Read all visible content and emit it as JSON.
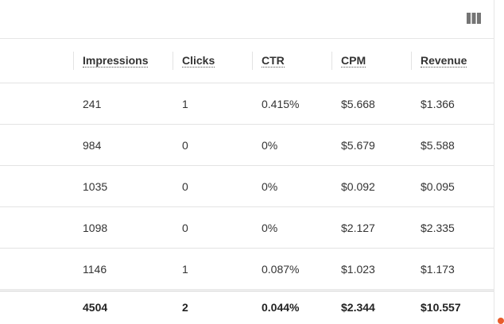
{
  "toolbar": {
    "columns_icon": "view-column-icon"
  },
  "table": {
    "columns": [
      "Impressions",
      "Clicks",
      "CTR",
      "CPM",
      "Revenue"
    ],
    "rows": [
      [
        "241",
        "1",
        "0.415%",
        "$5.668",
        "$1.366"
      ],
      [
        "984",
        "0",
        "0%",
        "$5.679",
        "$5.588"
      ],
      [
        "1035",
        "0",
        "0%",
        "$0.092",
        "$0.095"
      ],
      [
        "1098",
        "0",
        "0%",
        "$2.127",
        "$2.335"
      ],
      [
        "1146",
        "1",
        "0.087%",
        "$1.023",
        "$1.173"
      ]
    ],
    "totals": [
      "4504",
      "2",
      "0.044%",
      "$2.344",
      "$10.557"
    ]
  },
  "colors": {
    "text": "#333333",
    "divider": "#e3e3e3",
    "accent": "#e85d2c"
  }
}
